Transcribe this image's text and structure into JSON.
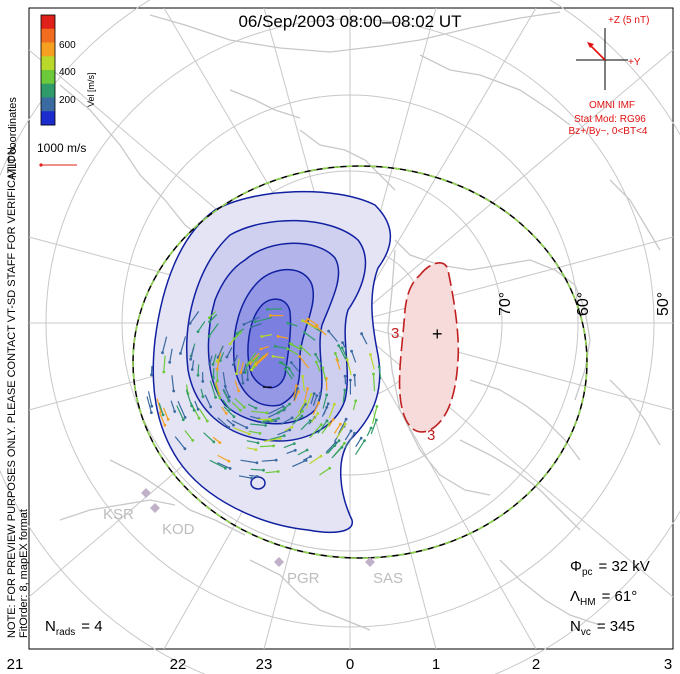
{
  "title": "06/Sep/2003 08:00–08:02 UT",
  "side_note": "NOTE: FOR PREVIEW PURPOSES ONLY. PLEASE CONTACT VT-SD STAFF FOR VERIFICATION.",
  "fit_order": "FitOrder: 8, mapEX format",
  "coord_label": "MLT coordinates",
  "colorbar": {
    "unit_label": "Vel [m/s]",
    "tick_labels": [
      "600",
      "400",
      "200"
    ],
    "colors": [
      "#e0201a",
      "#f26c1f",
      "#f5a020",
      "#b8d82a",
      "#6cc93a",
      "#2f9a6a",
      "#3a6aa0",
      "#1c2ccc"
    ]
  },
  "scale_vector_label": "1000 m/s",
  "imf": {
    "z_label": "+Z (5 nT)",
    "y_label": "+Y",
    "model_title": "OMNI IMF",
    "model_name": "Stat Mod: RG96",
    "model_condition": "Bz+/By−, 0<BT<4"
  },
  "latitude_labels": [
    "70°",
    "60°",
    "50°"
  ],
  "mlt_labels": [
    "21",
    "22",
    "23",
    "0",
    "1",
    "2",
    "3"
  ],
  "stations": [
    "KSR",
    "KOD",
    "PGR",
    "SAS"
  ],
  "stats": {
    "phi_symbol": "Φ",
    "phi_sub": "pc",
    "phi_value": "= 32 kV",
    "lambda_symbol": "Λ",
    "lambda_sub": "HM",
    "lambda_value": "= 61°",
    "nvc_symbol": "N",
    "nvc_sub": "vc",
    "nvc_value": "= 345",
    "nrads_symbol": "N",
    "nrads_sub": "rads",
    "nrads_value": "= 4"
  },
  "cell_markers": {
    "negative": "−",
    "positive": "+",
    "contour_label": "3"
  },
  "colors": {
    "neg_fill": "#7b7fe0",
    "pos_fill": "#f7dada",
    "neg_line": "#1020a0",
    "pos_line": "#c02020",
    "coast": "#c8c8c8",
    "grid": "#c8c8c8"
  }
}
